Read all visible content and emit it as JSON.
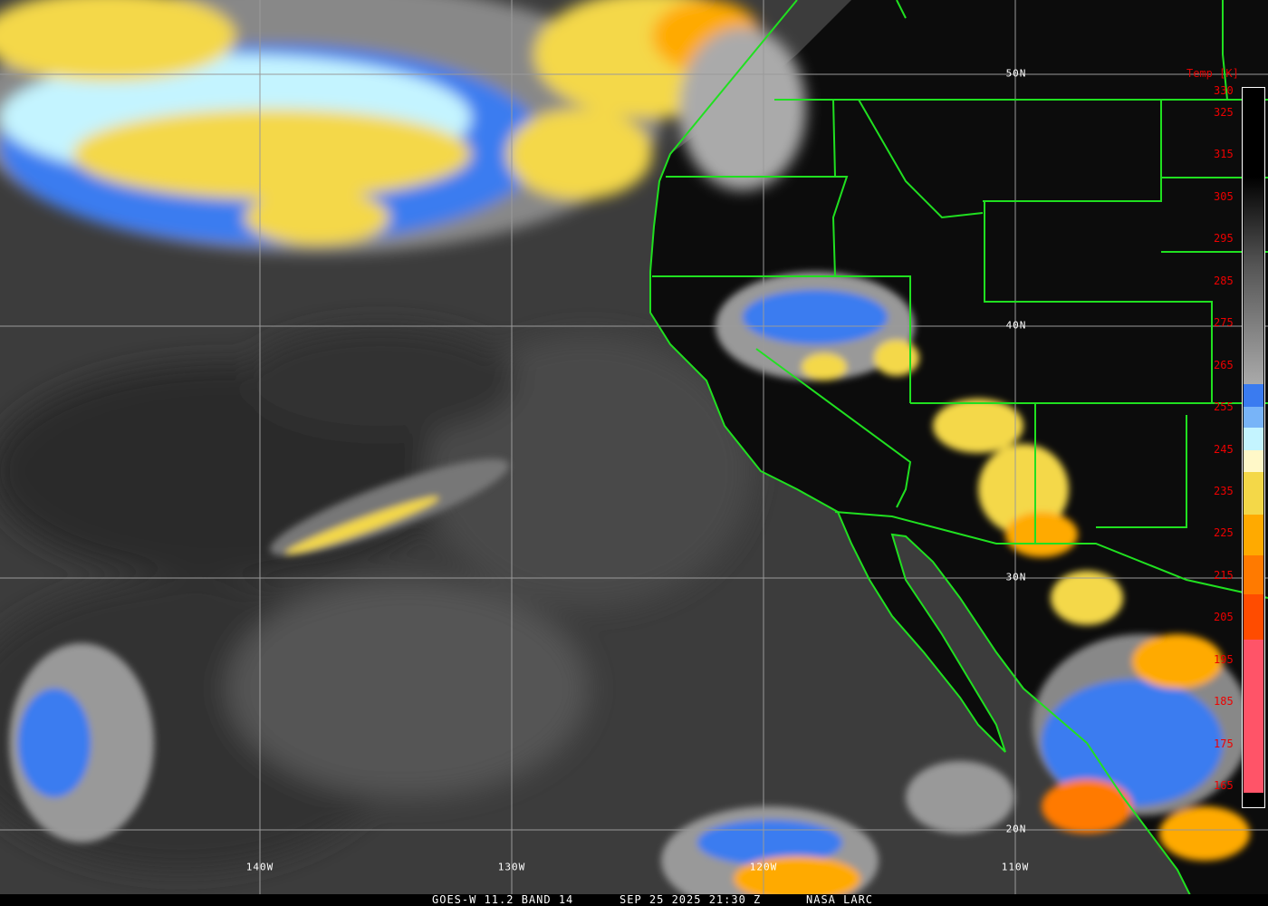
{
  "caption": {
    "satellite": "GOES-W 11.2 BAND 14",
    "datetime": "SEP 25 2025 21:30 Z",
    "source": "NASA LARC"
  },
  "colorbar": {
    "title": "Temp [K]",
    "labels": [
      "330",
      "325",
      "315",
      "305",
      "295",
      "285",
      "275",
      "265",
      "255",
      "245",
      "235",
      "225",
      "215",
      "205",
      "195",
      "185",
      "175",
      "165"
    ],
    "colors": {
      "blue": "#3a7bf0",
      "light_blue": "#78b4f8",
      "pale_cyan": "#c4f4ff",
      "cream": "#fff8c8",
      "yellow": "#f4d848",
      "orange": "#ffaa00",
      "dark_orange": "#ff7a00",
      "red_orange": "#ff4c00",
      "pink": "#ff5468"
    }
  },
  "grid": {
    "latitudes": [
      "50N",
      "40N",
      "30N",
      "20N"
    ],
    "longitudes": [
      "140W",
      "130W",
      "120W",
      "110W"
    ]
  },
  "colors": {
    "borders": "#20e020",
    "gridlines": "#9a9a9a",
    "land": "#0c0c0c",
    "ocean": "#3c3c3c"
  }
}
